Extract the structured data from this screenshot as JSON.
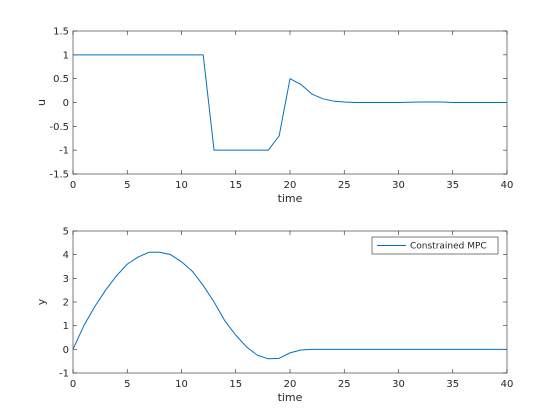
{
  "colors": {
    "line": "#0072bd",
    "axes": "#262626",
    "background": "#ffffff"
  },
  "chart_data": [
    {
      "type": "line",
      "xlabel": "time",
      "ylabel": "u",
      "xlim": [
        0,
        40
      ],
      "ylim": [
        -1.5,
        1.5
      ],
      "xticks": [
        "0",
        "5",
        "10",
        "15",
        "20",
        "25",
        "30",
        "35",
        "40"
      ],
      "yticks": [
        "-1.5",
        "-1",
        "-0.5",
        "0",
        "0.5",
        "1",
        "1.5"
      ],
      "grid": false,
      "series": [
        {
          "x": [
            0,
            12,
            13,
            14,
            15,
            16,
            17,
            18,
            19,
            20,
            21,
            22,
            23,
            24,
            25,
            26,
            30,
            32,
            34,
            35,
            40
          ],
          "y": [
            1,
            1,
            -1,
            -1,
            -1,
            -1,
            -1,
            -1,
            -0.7,
            0.5,
            0.38,
            0.18,
            0.08,
            0.03,
            0.01,
            0.0,
            0.0,
            0.01,
            0.01,
            0.0,
            0.0
          ]
        }
      ]
    },
    {
      "type": "line",
      "xlabel": "time",
      "ylabel": "y",
      "xlim": [
        0,
        40
      ],
      "ylim": [
        -1,
        5
      ],
      "xticks": [
        "0",
        "5",
        "10",
        "15",
        "20",
        "25",
        "30",
        "35",
        "40"
      ],
      "yticks": [
        "-1",
        "0",
        "1",
        "2",
        "3",
        "4",
        "5"
      ],
      "grid": false,
      "legend_position": "top-right",
      "series": [
        {
          "name": "Constrained MPC",
          "x": [
            0,
            1,
            2,
            3,
            4,
            5,
            6,
            7,
            8,
            9,
            10,
            11,
            12,
            13,
            14,
            15,
            16,
            17,
            18,
            19,
            20,
            21,
            22,
            25,
            30,
            35,
            40
          ],
          "y": [
            0,
            1.0,
            1.8,
            2.5,
            3.1,
            3.6,
            3.9,
            4.1,
            4.1,
            4.0,
            3.7,
            3.3,
            2.7,
            2.0,
            1.2,
            0.6,
            0.1,
            -0.25,
            -0.4,
            -0.38,
            -0.15,
            -0.03,
            0.0,
            0.0,
            0.0,
            0.0,
            0.0
          ]
        }
      ]
    }
  ]
}
